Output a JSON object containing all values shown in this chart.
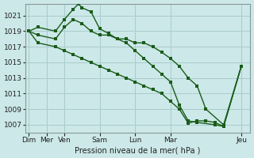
{
  "title": "",
  "xlabel": "Pression niveau de la mer( hPa )",
  "ylabel": "",
  "bg_color": "#cce8e8",
  "grid_color": "#aacccc",
  "line_color": "#1a5c1a",
  "xtick_labels": [
    "Dim",
    "Mer",
    "Ven",
    "",
    "Sam",
    "",
    "Lun",
    "",
    "Mar",
    "",
    "",
    "",
    "Jeu"
  ],
  "xtick_positions": [
    0,
    1,
    2,
    3,
    4,
    5,
    6,
    7,
    8,
    9,
    10,
    11,
    12
  ],
  "xlim": [
    -0.2,
    12.5
  ],
  "ylim": [
    1006.0,
    1022.5
  ],
  "yticks": [
    1007,
    1009,
    1011,
    1013,
    1015,
    1017,
    1019,
    1021
  ],
  "line1_x": [
    0,
    0.5,
    1.5,
    2.0,
    2.5,
    2.8,
    3.0,
    3.5,
    4.0,
    4.5,
    5.0,
    5.5,
    6.0,
    6.5,
    7.0,
    7.5,
    8.0,
    8.5,
    9.0,
    9.5,
    10.0,
    11.0,
    12.0
  ],
  "line1_y": [
    1019,
    1019.5,
    1019,
    1020.5,
    1021.8,
    1022.5,
    1022.0,
    1021.5,
    1019.3,
    1018.7,
    1018.0,
    1018.0,
    1017.5,
    1017.5,
    1017.0,
    1016.3,
    1015.5,
    1014.5,
    1013.0,
    1012.0,
    1009.0,
    1007.0,
    1014.5
  ],
  "line2_x": [
    0,
    0.5,
    1.5,
    2.0,
    2.5,
    3.0,
    3.5,
    4.0,
    4.5,
    5.0,
    5.5,
    6.0,
    6.5,
    7.0,
    7.5,
    8.0,
    8.5,
    9.0,
    9.5,
    10.5,
    11.0,
    12.0
  ],
  "line2_y": [
    1019,
    1018.5,
    1018.0,
    1019.5,
    1020.5,
    1020.0,
    1019.0,
    1018.5,
    1018.5,
    1018.0,
    1017.5,
    1016.5,
    1015.5,
    1014.5,
    1013.5,
    1012.5,
    1009.5,
    1007.5,
    1007.3,
    1007.0,
    1006.8,
    1014.5
  ],
  "line3_x": [
    0,
    0.5,
    1.5,
    2.0,
    2.5,
    3.0,
    3.5,
    4.0,
    4.5,
    5.0,
    5.5,
    6.0,
    6.5,
    7.0,
    7.5,
    8.0,
    8.5,
    9.0,
    9.5,
    10.0,
    10.5,
    11.0,
    12.0
  ],
  "line3_y": [
    1019,
    1017.5,
    1017.0,
    1016.5,
    1016.0,
    1015.5,
    1015.0,
    1014.5,
    1014.0,
    1013.5,
    1013.0,
    1012.5,
    1012.0,
    1011.5,
    1011.0,
    1010.0,
    1009.0,
    1007.2,
    1007.5,
    1007.5,
    1007.3,
    1006.8,
    1014.5
  ]
}
